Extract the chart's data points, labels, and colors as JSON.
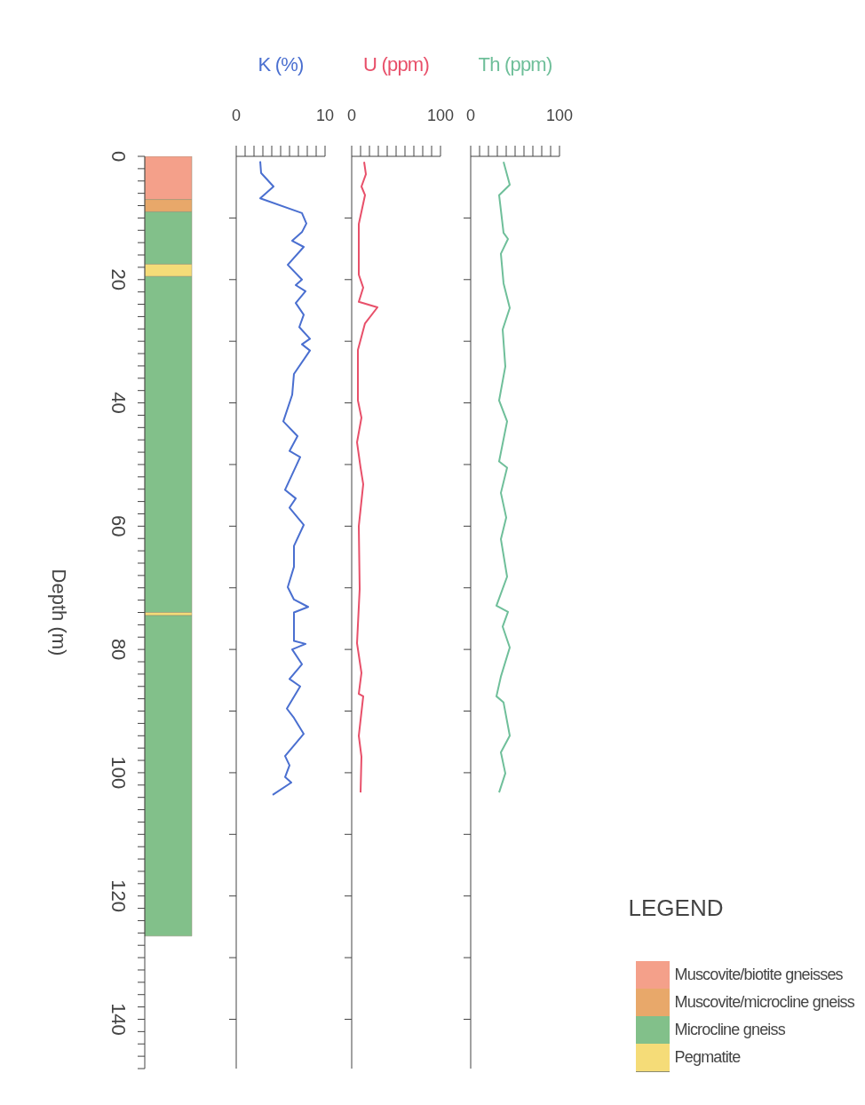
{
  "chart_data": [
    {
      "type": "bar",
      "stacked": true,
      "categories": [
        null
      ],
      "ylabel": "Depth (m)",
      "ylim": [
        148,
        0
      ],
      "yticks": [
        0,
        {
          "value": 2,
          "label": null
        },
        {
          "value": 4,
          "label": null
        },
        {
          "value": 6,
          "label": null
        },
        {
          "value": 8,
          "label": null
        },
        {
          "value": 10,
          "label": null
        },
        {
          "value": 12,
          "label": null
        },
        {
          "value": 14,
          "label": null
        },
        {
          "value": 16,
          "label": null
        },
        {
          "value": 18,
          "label": null
        },
        20,
        {
          "value": 22,
          "label": null
        },
        {
          "value": 24,
          "label": null
        },
        {
          "value": 26,
          "label": null
        },
        {
          "value": 28,
          "label": null
        },
        {
          "value": 30,
          "label": null
        },
        {
          "value": 32,
          "label": null
        },
        {
          "value": 34,
          "label": null
        },
        {
          "value": 36,
          "label": null
        },
        {
          "value": 38,
          "label": null
        },
        40,
        {
          "value": 42,
          "label": null
        },
        {
          "value": 44,
          "label": null
        },
        {
          "value": 46,
          "label": null
        },
        {
          "value": 48,
          "label": null
        },
        {
          "value": 50,
          "label": null
        },
        {
          "value": 52,
          "label": null
        },
        {
          "value": 54,
          "label": null
        },
        {
          "value": 56,
          "label": null
        },
        {
          "value": 58,
          "label": null
        },
        60,
        {
          "value": 62,
          "label": null
        },
        {
          "value": 64,
          "label": null
        },
        {
          "value": 66,
          "label": null
        },
        {
          "value": 68,
          "label": null
        },
        {
          "value": 70,
          "label": null
        },
        {
          "value": 72,
          "label": null
        },
        {
          "value": 74,
          "label": null
        },
        {
          "value": 76,
          "label": null
        },
        {
          "value": 78,
          "label": null
        },
        80,
        {
          "value": 82,
          "label": null
        },
        {
          "value": 84,
          "label": null
        },
        {
          "value": 86,
          "label": null
        },
        {
          "value": 88,
          "label": null
        },
        {
          "value": 90,
          "label": null
        },
        {
          "value": 92,
          "label": null
        },
        {
          "value": 94,
          "label": null
        },
        {
          "value": 96,
          "label": null
        },
        {
          "value": 98,
          "label": null
        },
        100,
        {
          "value": 102,
          "label": null
        },
        {
          "value": 104,
          "label": null
        },
        {
          "value": 106,
          "label": null
        },
        {
          "value": 108,
          "label": null
        },
        {
          "value": 110,
          "label": null
        },
        {
          "value": 112,
          "label": null
        },
        {
          "value": 114,
          "label": null
        },
        {
          "value": 116,
          "label": null
        },
        {
          "value": 118,
          "label": null
        },
        120,
        {
          "value": 122,
          "label": null
        },
        {
          "value": 124,
          "label": null
        },
        {
          "value": 126,
          "label": null
        },
        {
          "value": 128,
          "label": null
        },
        {
          "value": 130,
          "label": null
        },
        {
          "value": 132,
          "label": null
        },
        {
          "value": 134,
          "label": null
        },
        {
          "value": 136,
          "label": null
        },
        {
          "value": 138,
          "label": null
        },
        140,
        {
          "value": 142,
          "label": null
        },
        {
          "value": 144,
          "label": null
        },
        {
          "value": 146,
          "label": null
        },
        {
          "value": 148,
          "label": null
        }
      ],
      "tick_labels": "y",
      "legend": "bottom right",
      "legend_title": "LEGEND",
      "series": [
        {
          "name": "Muscovite/biotite gneisses",
          "color": "#f4a08a",
          "values": [
            7
          ]
        },
        {
          "name": "Muscovite/microcline gneiss",
          "color": "#e8a86a",
          "values": [
            2
          ]
        },
        {
          "name": "Microcline gneiss",
          "color": "#82c08a",
          "values": [
            8.5
          ]
        },
        {
          "name": "Pegmatite",
          "color": "#f5dc78",
          "values": [
            2
          ]
        },
        {
          "color": "#82c08a",
          "values": [
            54.5
          ]
        },
        {
          "color": "#f5dc78",
          "values": [
            0.5
          ]
        },
        {
          "color": "#82c08a",
          "values": [
            52
          ]
        }
      ]
    },
    {
      "type": "line",
      "orientation": "horizontal",
      "xlabel": "K (%)",
      "xlim": [
        0,
        10
      ],
      "xticks": [
        0,
        {
          "value": 1,
          "label": null
        },
        {
          "value": 2,
          "label": null
        },
        {
          "value": 3,
          "label": null
        },
        {
          "value": 4,
          "label": null
        },
        {
          "value": 5,
          "label": null
        },
        {
          "value": 6,
          "label": null
        },
        {
          "value": 7,
          "label": null
        },
        {
          "value": 8,
          "label": null
        },
        {
          "value": 9,
          "label": null
        },
        10
      ],
      "ylim": [
        148,
        0
      ],
      "yticks": [
        {
          "value": 10,
          "label": null
        },
        {
          "value": 20,
          "label": null
        },
        {
          "value": 30,
          "label": null
        },
        {
          "value": 40,
          "label": null
        },
        {
          "value": 50,
          "label": null
        },
        {
          "value": 60,
          "label": null
        },
        {
          "value": 70,
          "label": null
        },
        {
          "value": 80,
          "label": null
        },
        {
          "value": 90,
          "label": null
        },
        {
          "value": 100,
          "label": null
        },
        {
          "value": 110,
          "label": null
        },
        {
          "value": 120,
          "label": null
        },
        {
          "value": 130,
          "label": null
        },
        {
          "value": 140,
          "label": null
        }
      ],
      "tick_labels": "x",
      "series": [
        {
          "color": "#4a6fd0",
          "x": [
            0.8,
            2.7,
            4.9,
            6.8,
            9.2,
            10.9,
            12.3,
            13.7,
            14.7,
            17.6,
            20,
            20.9,
            21.9,
            23.8,
            25.7,
            27.7,
            29.6,
            30.5,
            31.5,
            35.3,
            38.7,
            43,
            45.4,
            47.8,
            48.8,
            54.1,
            55.5,
            57,
            59.8,
            63.2,
            66.6,
            69.9,
            71.9,
            73.1,
            74,
            78.6,
            79.1,
            80,
            82.4,
            84.8,
            86,
            89.6,
            91.1,
            93.7,
            97.3,
            98.8,
            100.7,
            101.6,
            103.6
          ],
          "values": [
            2.7,
            2.8,
            4.2,
            2.7,
            7.4,
            7.9,
            7.4,
            6.3,
            7.6,
            5.8,
            7.4,
            6.7,
            7.8,
            6.7,
            7.6,
            7.1,
            8.3,
            7.4,
            8.3,
            6.5,
            6.3,
            5.3,
            6.9,
            6.0,
            7.2,
            5.5,
            6.7,
            6.0,
            7.6,
            6.5,
            6.5,
            5.8,
            6.5,
            8.1,
            6.5,
            6.5,
            7.8,
            6.3,
            7.4,
            6.0,
            7.2,
            5.7,
            6.5,
            7.6,
            5.5,
            6.0,
            5.5,
            6.2,
            4.1
          ]
        }
      ]
    },
    {
      "type": "line",
      "orientation": "horizontal",
      "xlabel": "U (ppm)",
      "xlim": [
        0,
        100
      ],
      "xticks": [
        0,
        {
          "value": 10,
          "label": null
        },
        {
          "value": 20,
          "label": null
        },
        {
          "value": 30,
          "label": null
        },
        {
          "value": 40,
          "label": null
        },
        {
          "value": 50,
          "label": null
        },
        {
          "value": 60,
          "label": null
        },
        {
          "value": 70,
          "label": null
        },
        {
          "value": 80,
          "label": null
        },
        {
          "value": 90,
          "label": null
        },
        100
      ],
      "ylim": [
        148,
        0
      ],
      "yticks": [
        {
          "value": 10,
          "label": null
        },
        {
          "value": 20,
          "label": null
        },
        {
          "value": 30,
          "label": null
        },
        {
          "value": 40,
          "label": null
        },
        {
          "value": 50,
          "label": null
        },
        {
          "value": 60,
          "label": null
        },
        {
          "value": 70,
          "label": null
        },
        {
          "value": 80,
          "label": null
        },
        {
          "value": 90,
          "label": null
        },
        {
          "value": 100,
          "label": null
        },
        {
          "value": 110,
          "label": null
        },
        {
          "value": 120,
          "label": null
        },
        {
          "value": 130,
          "label": null
        },
        {
          "value": 140,
          "label": null
        }
      ],
      "tick_labels": "x",
      "series": [
        {
          "color": "#e8506a",
          "x": [
            0.9,
            2.9,
            4.9,
            6.3,
            11,
            19.2,
            21.3,
            23.6,
            24.5,
            27.1,
            31.4,
            39.6,
            42.4,
            46.4,
            50.5,
            53.2,
            60,
            70.2,
            79,
            83.8,
            87.2,
            87.6,
            94,
            97.4,
            103.2
          ],
          "values": [
            14,
            16,
            11,
            15,
            8,
            8,
            13,
            8,
            29,
            15,
            7,
            7,
            11,
            6,
            10,
            13,
            8,
            9,
            6,
            11,
            8,
            13,
            8,
            11,
            10
          ]
        }
      ]
    },
    {
      "type": "line",
      "orientation": "horizontal",
      "xlabel": "Th (ppm)",
      "xlim": [
        0,
        100
      ],
      "xticks": [
        0,
        {
          "value": 10,
          "label": null
        },
        {
          "value": 20,
          "label": null
        },
        {
          "value": 30,
          "label": null
        },
        {
          "value": 40,
          "label": null
        },
        {
          "value": 50,
          "label": null
        },
        {
          "value": 60,
          "label": null
        },
        {
          "value": 70,
          "label": null
        },
        {
          "value": 80,
          "label": null
        },
        {
          "value": 90,
          "label": null
        },
        100
      ],
      "ylim": [
        148,
        0
      ],
      "yticks": [
        {
          "value": 10,
          "label": null
        },
        {
          "value": 20,
          "label": null
        },
        {
          "value": 30,
          "label": null
        },
        {
          "value": 40,
          "label": null
        },
        {
          "value": 50,
          "label": null
        },
        {
          "value": 60,
          "label": null
        },
        {
          "value": 70,
          "label": null
        },
        {
          "value": 80,
          "label": null
        },
        {
          "value": 90,
          "label": null
        },
        {
          "value": 100,
          "label": null
        },
        {
          "value": 110,
          "label": null
        },
        {
          "value": 120,
          "label": null
        },
        {
          "value": 130,
          "label": null
        },
        {
          "value": 140,
          "label": null
        }
      ],
      "tick_labels": "x",
      "series": [
        {
          "color": "#6fbf9a",
          "x": [
            0.9,
            4.6,
            6.3,
            12.4,
            13.4,
            15.8,
            20.6,
            24.6,
            28.1,
            34.1,
            39.6,
            43,
            49.5,
            50.5,
            54.6,
            58.6,
            62.1,
            68.2,
            72.9,
            73.9,
            76.3,
            79.7,
            84.4,
            87.6,
            88.6,
            94,
            96.7,
            100.1,
            103.2
          ],
          "values": [
            37,
            44,
            32,
            37,
            42,
            34,
            37,
            44,
            36,
            39,
            32,
            41,
            32,
            41,
            34,
            40,
            34,
            41,
            29,
            42,
            36,
            44,
            34,
            29,
            37,
            44,
            34,
            39,
            32
          ]
        }
      ]
    }
  ]
}
